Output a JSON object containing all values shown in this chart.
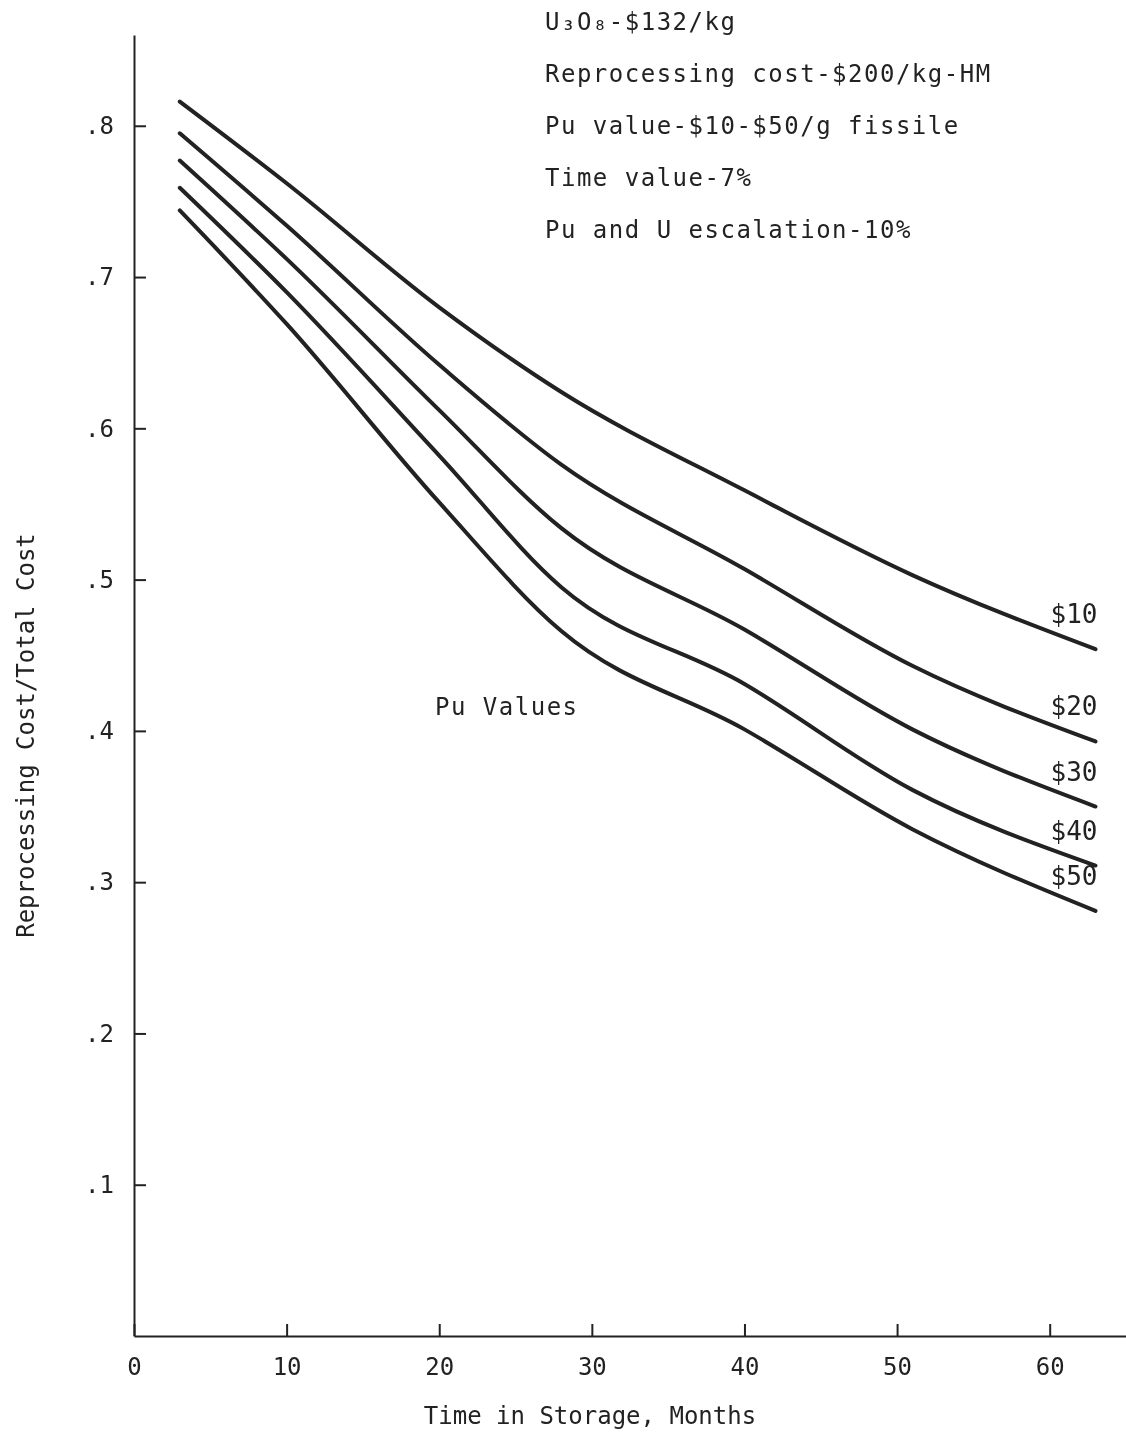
{
  "chart_data": {
    "type": "line",
    "xlabel": "Time in Storage, Months",
    "ylabel": "Reprocessing Cost/Total Cost",
    "x": [
      3,
      10,
      20,
      28,
      40,
      51,
      63
    ],
    "series": [
      {
        "name": "$10",
        "color": "#222222",
        "values": [
          0.816,
          0.762,
          0.68,
          0.624,
          0.559,
          0.503,
          0.454
        ]
      },
      {
        "name": "$20",
        "color": "#222222",
        "values": [
          0.795,
          0.734,
          0.642,
          0.576,
          0.507,
          0.443,
          0.393
        ]
      },
      {
        "name": "$30",
        "color": "#222222",
        "values": [
          0.777,
          0.712,
          0.612,
          0.534,
          0.467,
          0.401,
          0.35
        ]
      },
      {
        "name": "$40",
        "color": "#222222",
        "values": [
          0.759,
          0.69,
          0.582,
          0.495,
          0.431,
          0.361,
          0.311
        ]
      },
      {
        "name": "$50",
        "color": "#222222",
        "values": [
          0.744,
          0.669,
          0.551,
          0.466,
          0.401,
          0.335,
          0.281
        ]
      }
    ],
    "xlim": [
      0,
      65
    ],
    "xticks": [
      0,
      10,
      20,
      30,
      40,
      50,
      60
    ],
    "ylim": [
      0,
      0.86
    ],
    "yticks": [
      {
        "value": 0.1,
        "label": ".1"
      },
      {
        "value": 0.2,
        "label": ".2"
      },
      {
        "value": 0.3,
        "label": ".3"
      },
      {
        "value": 0.4,
        "label": ".4"
      },
      {
        "value": 0.5,
        "label": ".5"
      },
      {
        "value": 0.6,
        "label": ".6"
      },
      {
        "value": 0.7,
        "label": ".7"
      },
      {
        "value": 0.8,
        "label": ".8"
      }
    ],
    "annotations": [
      "U₃O₈-$132/kg",
      "Reprocessing cost-$200/kg-HM",
      "Pu value-$10-$50/g fissile",
      "Time value-7%",
      "Pu and U escalation-10%",
      "Pu Values"
    ],
    "grid": false,
    "legend": false,
    "marker": "none",
    "line_style": "solid"
  }
}
